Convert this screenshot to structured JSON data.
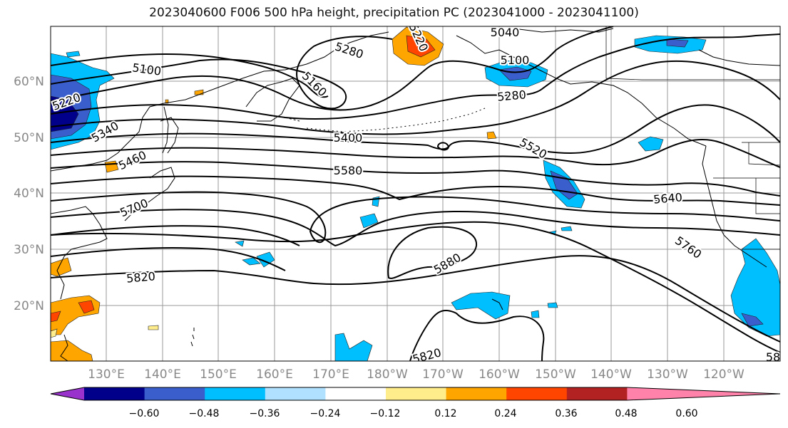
{
  "title": "2023040600 F006 500 hPa height, precipitation PC (2023041000 - 2023041100)",
  "lat_labels": [
    "60°N",
    "50°N",
    "40°N",
    "30°N",
    "20°N"
  ],
  "lon_labels": [
    "130°E",
    "140°E",
    "150°E",
    "160°E",
    "170°E",
    "180°W",
    "170°W",
    "160°W",
    "150°W",
    "140°W",
    "130°W",
    "120°W"
  ],
  "contour_labels": [
    "5100",
    "5280",
    "5160",
    "5040",
    "5100",
    "5220",
    "5220",
    "5280",
    "5340",
    "5400",
    "5460",
    "5520",
    "5580",
    "5640",
    "5700",
    "5760",
    "5820",
    "5880",
    "5820",
    "58"
  ],
  "colorbar": {
    "colors": [
      "#9932cc",
      "#00008b",
      "#3a5fcd",
      "#00bfff",
      "#b0e2ff",
      "#ffffff",
      "#ffec8b",
      "#ffa500",
      "#ff4500",
      "#b22222",
      "#ff82ab"
    ],
    "tick_labels": [
      "−0.60",
      "−0.48",
      "−0.36",
      "−0.24",
      "−0.12",
      "0.12",
      "0.24",
      "0.36",
      "0.48",
      "0.60"
    ]
  }
}
